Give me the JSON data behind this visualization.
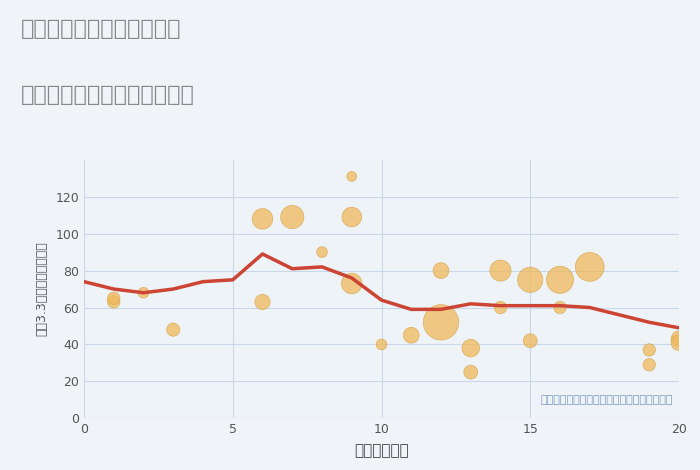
{
  "title_line1": "愛知県稲沢市平和町東城の",
  "title_line2": "駅距離別中古マンション価格",
  "xlabel": "駅距離（分）",
  "ylabel": "坪（3.3㎡）単価（万円）",
  "fig_bg_color": "#f0f4f8",
  "plot_bg_color": "#eef3f8",
  "title_color": "#888888",
  "annotation_text": "円の大きさは、取引のあった物件面積を示す",
  "annotation_color": "#7799bb",
  "xlim": [
    0,
    20
  ],
  "ylim": [
    0,
    140
  ],
  "xticks": [
    0,
    5,
    10,
    15,
    20
  ],
  "yticks": [
    0,
    20,
    40,
    60,
    80,
    100,
    120
  ],
  "grid_color": "#c8d8e8",
  "bubble_color": "#f0b95a",
  "bubble_alpha": 0.75,
  "bubble_edge_color": "#d4a040",
  "line_color": "#cc4433",
  "line_width": 2.5,
  "scatter_x": [
    1,
    1,
    2,
    3,
    6,
    6,
    7,
    8,
    9,
    9,
    9,
    10,
    11,
    12,
    12,
    13,
    13,
    14,
    14,
    15,
    15,
    16,
    16,
    17,
    19,
    19,
    20,
    20
  ],
  "scatter_y": [
    63,
    65,
    68,
    48,
    63,
    108,
    109,
    90,
    131,
    73,
    109,
    40,
    45,
    52,
    80,
    25,
    38,
    60,
    80,
    75,
    42,
    60,
    75,
    82,
    29,
    37,
    43,
    41
  ],
  "scatter_size": [
    80,
    80,
    60,
    90,
    120,
    220,
    280,
    60,
    50,
    220,
    200,
    60,
    130,
    650,
    130,
    100,
    160,
    80,
    230,
    330,
    100,
    80,
    380,
    430,
    80,
    80,
    130,
    130
  ],
  "line_x": [
    0,
    1,
    2,
    3,
    4,
    5,
    6,
    7,
    8,
    9,
    10,
    11,
    12,
    13,
    14,
    15,
    16,
    17,
    18,
    19,
    20
  ],
  "line_y": [
    74,
    70,
    68,
    70,
    74,
    75,
    89,
    81,
    82,
    76,
    64,
    59,
    59,
    62,
    61,
    61,
    61,
    60,
    56,
    52,
    49
  ]
}
